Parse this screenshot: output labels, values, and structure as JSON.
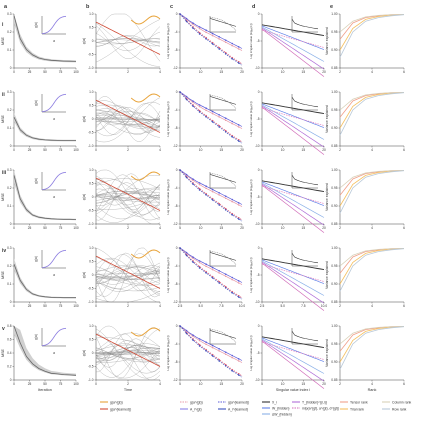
{
  "panel_letters": [
    "a",
    "b",
    "c",
    "d",
    "e"
  ],
  "row_labels": [
    "i",
    "ii",
    "iii",
    "iv",
    "v"
  ],
  "colors": {
    "mse": "#666666",
    "mse_band": "#d0d0d0",
    "inset_curve": "#8a7be0",
    "g_gt": "#e8a33a",
    "g_learned": "#d04a35",
    "tensor_rank": "#f0a08a",
    "trial_rank": "#f5c060",
    "column_rank": "#d8d0b8",
    "row_rank": "#b8c8d8",
    "c_series": [
      "#e89aa8",
      "#e05c70",
      "#8a80e8",
      "#5a5ad8",
      "#3a50c0",
      "#2a3aa0"
    ],
    "d_series": [
      "#333333",
      "#6080e8",
      "#8ab0e8",
      "#b070d8",
      "#d06ab8",
      "#e080c0"
    ]
  },
  "legends": {
    "b": [
      "g(a^{gt})",
      "g(a^{learned})"
    ],
    "c": [
      "g(a^{gt})",
      "A_i^{gt}",
      "g(a^{learned})",
      "A_i^{learned}"
    ],
    "d": [
      "X_i",
      "W_{hidden}",
      "ΔW_{hidden}",
      "T_{hidden}^{(i,i)}",
      "mlp(a^{gt}, a^{gt}, d^{gt})"
    ],
    "e": [
      "Tensor rank",
      "Trial rank",
      "Column rank",
      "Row rank"
    ]
  },
  "axis_labels": {
    "a_y": "MSE",
    "a_x_bottom": "Iteration",
    "b_y": "g(a)",
    "b_x_bottom": "Time",
    "c_y": "Log singular value (log₁₀(σᵢ))",
    "c_x_bottom": "Singular value index i",
    "d_y": "Log singular value (log₁₀(σᵢ))",
    "e_y": "Variance explained",
    "e_x_bottom": "Rank",
    "inset_x": "a",
    "inset_y": "g(a)"
  },
  "chart_data": [
    {
      "panel": "a",
      "type": "line",
      "x": [
        0,
        10,
        20,
        30,
        40,
        50,
        60,
        70,
        80,
        90,
        100
      ],
      "series": [
        {
          "row": "i",
          "values": [
            0.34,
            0.19,
            0.12,
            0.085,
            0.065,
            0.055,
            0.05,
            0.047,
            0.045,
            0.044,
            0.043
          ]
        },
        {
          "row": "ii",
          "values": [
            0.16,
            0.09,
            0.06,
            0.045,
            0.038,
            0.034,
            0.032,
            0.031,
            0.03,
            0.03,
            0.03
          ]
        },
        {
          "row": "iii",
          "values": [
            0.27,
            0.14,
            0.08,
            0.05,
            0.038,
            0.032,
            0.029,
            0.027,
            0.026,
            0.026,
            0.025
          ]
        },
        {
          "row": "iv",
          "values": [
            0.21,
            0.12,
            0.07,
            0.045,
            0.034,
            0.029,
            0.026,
            0.025,
            0.024,
            0.024,
            0.024
          ]
        },
        {
          "row": "v",
          "values": [
            0.8,
            0.55,
            0.35,
            0.24,
            0.17,
            0.13,
            0.1,
            0.09,
            0.08,
            0.075,
            0.07
          ]
        }
      ]
    },
    {
      "panel": "c",
      "type": "line",
      "x": [
        1,
        2,
        3,
        4,
        5,
        6,
        7,
        8,
        9,
        10,
        11,
        12,
        13,
        14,
        15,
        16,
        17,
        18,
        19,
        20
      ],
      "series": [
        {
          "name": "g(a^{gt})",
          "values": [
            0,
            -0.6,
            -1.2,
            -1.9,
            -2.5,
            -3.0,
            -3.5,
            -4.0,
            -4.4,
            -4.8,
            -5.2,
            -5.6,
            -6.0,
            -6.4,
            -6.8,
            -7.2,
            -7.6,
            -8.0,
            -8.4,
            -8.8
          ]
        },
        {
          "name": "A_i^{gt}",
          "values": [
            0,
            -0.8,
            -1.6,
            -2.4,
            -3.1,
            -3.8,
            -4.5,
            -5.1,
            -5.7,
            -6.3,
            -6.9,
            -7.5,
            -8.1,
            -8.7,
            -9.3,
            -9.9,
            -10.5,
            -11.0,
            -11.5,
            -12.0
          ]
        },
        {
          "name": "g(a^{learned})",
          "values": [
            0,
            -0.5,
            -1.1,
            -1.7,
            -2.2,
            -2.7,
            -3.1,
            -3.5,
            -3.9,
            -4.3,
            -4.7,
            -5.1,
            -5.5,
            -5.9,
            -6.3,
            -6.7,
            -7.1,
            -7.5,
            -7.9,
            -8.3
          ]
        },
        {
          "name": "A_i^{learned}",
          "values": [
            0,
            -0.9,
            -1.8,
            -2.6,
            -3.4,
            -4.1,
            -4.8,
            -5.4,
            -6.0,
            -6.6,
            -7.2,
            -7.8,
            -8.4,
            -9.0,
            -9.6,
            -10.2,
            -10.8,
            -11.3,
            -11.8,
            -12.3
          ]
        }
      ]
    },
    {
      "panel": "e",
      "type": "line",
      "x": [
        1,
        2,
        3,
        4,
        5,
        6
      ],
      "series": [
        {
          "name": "Tensor rank",
          "values": [
            0.93,
            0.975,
            0.99,
            0.995,
            0.998,
            0.999
          ]
        },
        {
          "name": "Trial rank",
          "values": [
            0.9,
            0.96,
            0.985,
            0.993,
            0.997,
            0.999
          ]
        },
        {
          "name": "Column rank",
          "values": [
            0.95,
            0.98,
            0.992,
            0.996,
            0.998,
            0.999
          ]
        },
        {
          "name": "Row rank",
          "values": [
            0.88,
            0.95,
            0.98,
            0.99,
            0.995,
            0.998
          ]
        }
      ]
    }
  ]
}
